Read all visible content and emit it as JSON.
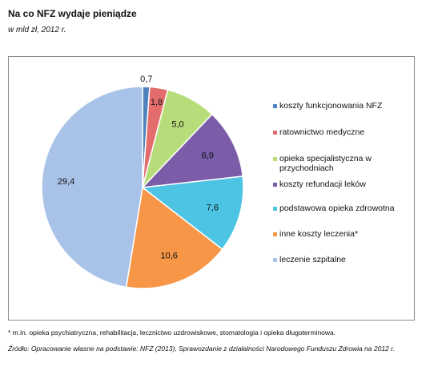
{
  "title": "Na co NFZ wydaje pieniądze",
  "subtitle": "w mld zł, 2012 r.",
  "chart_data": {
    "type": "pie",
    "categories": [
      "koszty funkcjonowania NFZ",
      "ratownictwo medyczne",
      "opieka specjalistyczna w przychodniach",
      "koszty refundacji leków",
      "podstawowa opieka zdrowotna",
      "inne koszty leczenia*",
      "leczenie szpitalne"
    ],
    "values": [
      0.7,
      1.8,
      5.0,
      6.9,
      7.6,
      10.6,
      29.4
    ],
    "labels": [
      "0,7",
      "1,8",
      "5,0",
      "6,9",
      "7,6",
      "10,6",
      "29,4"
    ],
    "colors": [
      "#4f81bd",
      "#e36c6c",
      "#b7dd7a",
      "#7a5ca8",
      "#4ec4e4",
      "#f79646",
      "#a9c3e8"
    ],
    "legend_position": "right"
  },
  "footnote": "* m.in. opieka psychiatryczna, rehabilitacja, lecznictwo uzdrowiskowe, stomatologia i opieka długoterminowa.",
  "source": "Źródło: Opracowanie własne na podstawie: NFZ (2013), Sprawozdanie z działalności Narodowego Funduszu Zdrowia na 2012 r."
}
